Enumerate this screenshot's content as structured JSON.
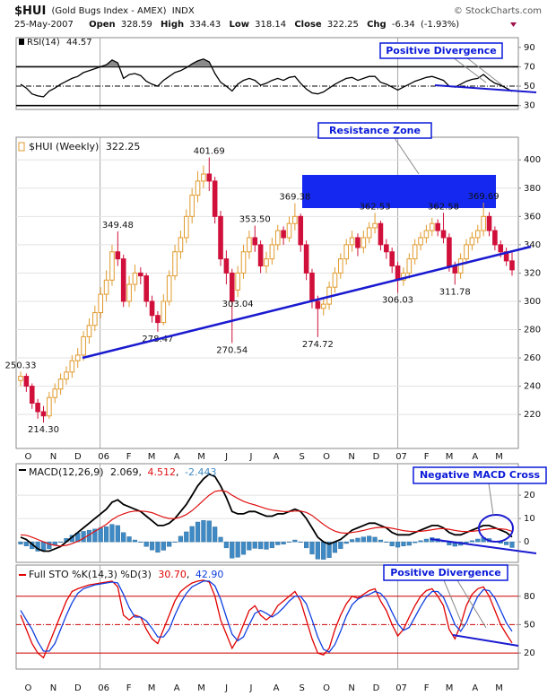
{
  "header": {
    "symbol": "$HUI",
    "name": "(Gold Bugs Index - AMEX)",
    "exchange": "INDX",
    "source": "© StockCharts.com",
    "date": "25-May-2007",
    "open_label": "Open",
    "high_label": "High",
    "low_label": "Low",
    "close_label": "Close",
    "chg_label": "Chg",
    "change": -6.34,
    "change_pct": "(-1.93%)"
  },
  "chart_data": [
    {
      "type": "line",
      "ylim": [
        26,
        100
      ],
      "yticks": [
        30,
        50,
        70,
        90
      ],
      "grid": false,
      "ref_lines": [
        30,
        70
      ],
      "ref_color": "#000000",
      "mid_line": 50,
      "fill_above": 70,
      "fill_color": "#8c8c8c",
      "series": [
        {
          "name": "RSI(14)",
          "color": "#000000",
          "values": [
            52,
            48,
            42,
            40,
            39,
            45,
            48,
            52,
            55,
            58,
            60,
            64,
            66,
            68,
            70,
            72,
            77,
            74,
            58,
            62,
            63,
            61,
            55,
            52,
            50,
            56,
            60,
            64,
            66,
            69,
            73,
            76,
            78,
            75,
            63,
            54,
            50,
            45,
            52,
            56,
            58,
            56,
            51,
            53,
            56,
            58,
            56,
            59,
            60,
            53,
            47,
            43,
            42,
            44,
            48,
            52,
            55,
            58,
            59,
            56,
            58,
            60,
            60,
            54,
            52,
            49,
            46,
            49,
            52,
            55,
            57,
            59,
            60,
            58,
            56,
            50,
            49,
            52,
            55,
            57,
            58,
            62,
            57,
            53,
            51,
            48,
            44.57
          ]
        }
      ],
      "annotations": [
        "Positive Divergence"
      ]
    },
    {
      "type": "candlestick",
      "label": "$HUI (Weekly)",
      "ylim": [
        196,
        416
      ],
      "yticks": [
        220,
        240,
        260,
        280,
        300,
        320,
        340,
        360,
        380,
        400
      ],
      "grid": true,
      "up_color": "#e09a2c",
      "down_color": "#d0103a",
      "open": [
        244,
        247,
        240,
        228,
        222,
        219,
        232,
        238,
        245,
        250,
        258,
        262,
        275,
        283,
        292,
        305,
        315,
        335,
        330,
        300,
        312,
        320,
        318,
        300,
        290,
        285,
        300,
        318,
        335,
        345,
        360,
        375,
        385,
        390,
        385,
        360,
        330,
        320,
        308,
        320,
        335,
        345,
        340,
        325,
        330,
        340,
        350,
        345,
        355,
        360,
        340,
        320,
        300,
        295,
        298,
        310,
        320,
        330,
        340,
        345,
        338,
        345,
        352,
        355,
        340,
        335,
        325,
        315,
        320,
        330,
        340,
        345,
        350,
        355,
        350,
        345,
        325,
        320,
        330,
        340,
        345,
        350,
        360,
        350,
        340,
        335,
        328.59
      ],
      "high": [
        250.33,
        249,
        242,
        231,
        226,
        236,
        242,
        249,
        254,
        262,
        267,
        279,
        288,
        297,
        310,
        322,
        340,
        349.48,
        333,
        318,
        326,
        324,
        320,
        304,
        293,
        305,
        322,
        340,
        350,
        365,
        380,
        392,
        396,
        401.69,
        388,
        364,
        336,
        323,
        325,
        340,
        350,
        353.5,
        343,
        335,
        345,
        354,
        353,
        360,
        369.38,
        362,
        343,
        323,
        304,
        302,
        314,
        324,
        334,
        344,
        350,
        348,
        350,
        356,
        362.53,
        357,
        344,
        338,
        328,
        324,
        334,
        344,
        349,
        354,
        359,
        358,
        362.58,
        348,
        328,
        334,
        344,
        349,
        354,
        369.69,
        363,
        353,
        343,
        338,
        334.43
      ],
      "low": [
        240,
        236,
        224,
        217,
        214.3,
        217,
        228,
        234,
        241,
        246,
        253,
        258,
        270,
        279,
        288,
        300,
        311,
        325,
        296,
        296,
        307,
        312,
        296,
        285,
        278.47,
        283,
        297,
        315,
        330,
        341,
        355,
        370,
        380,
        378,
        355,
        325,
        312,
        270.54,
        303.04,
        316,
        330,
        335,
        320,
        320,
        326,
        336,
        340,
        342,
        350,
        335,
        315,
        295,
        274.72,
        290,
        294,
        306,
        316,
        326,
        335,
        332,
        334,
        341,
        348,
        336,
        330,
        320,
        306.03,
        311,
        316,
        326,
        336,
        341,
        346,
        346,
        341,
        321,
        311.78,
        316,
        326,
        336,
        341,
        346,
        346,
        336,
        331,
        325,
        318.14
      ],
      "close": [
        247,
        240,
        228,
        222,
        219,
        232,
        238,
        245,
        250,
        258,
        262,
        275,
        283,
        292,
        305,
        315,
        335,
        330,
        300,
        312,
        320,
        318,
        300,
        290,
        285,
        300,
        318,
        335,
        345,
        360,
        375,
        385,
        390,
        385,
        360,
        330,
        320,
        300,
        320,
        335,
        345,
        340,
        325,
        330,
        340,
        350,
        345,
        355,
        360,
        340,
        320,
        300,
        295,
        298,
        310,
        320,
        330,
        340,
        345,
        338,
        345,
        352,
        355,
        340,
        335,
        325,
        315,
        320,
        330,
        340,
        345,
        350,
        355,
        350,
        345,
        325,
        320,
        330,
        340,
        345,
        350,
        360,
        350,
        340,
        335,
        328.59,
        322.25
      ],
      "high_labels": [
        "250.33",
        null,
        null,
        null,
        null,
        null,
        null,
        null,
        null,
        null,
        null,
        null,
        null,
        null,
        null,
        null,
        null,
        "349.48",
        null,
        null,
        null,
        null,
        null,
        null,
        null,
        null,
        null,
        null,
        null,
        null,
        null,
        null,
        null,
        "401.69",
        null,
        null,
        null,
        null,
        null,
        null,
        null,
        "353.50",
        null,
        null,
        null,
        null,
        null,
        null,
        "369.38",
        null,
        null,
        null,
        null,
        null,
        null,
        null,
        null,
        null,
        null,
        null,
        null,
        null,
        "362.53",
        null,
        null,
        null,
        null,
        null,
        null,
        null,
        null,
        null,
        null,
        null,
        "362.58",
        null,
        null,
        null,
        null,
        null,
        null,
        "369.69",
        null,
        null,
        null,
        null,
        null
      ],
      "low_labels": [
        null,
        null,
        null,
        null,
        "214.30",
        null,
        null,
        null,
        null,
        null,
        null,
        null,
        null,
        null,
        null,
        null,
        null,
        null,
        null,
        null,
        null,
        null,
        null,
        null,
        "278.47",
        null,
        null,
        null,
        null,
        null,
        null,
        null,
        null,
        null,
        null,
        null,
        null,
        "270.54",
        "303.04",
        null,
        null,
        null,
        null,
        null,
        null,
        null,
        null,
        null,
        null,
        null,
        null,
        null,
        "274.72",
        null,
        null,
        null,
        null,
        null,
        null,
        null,
        null,
        null,
        null,
        null,
        null,
        null,
        "306.03",
        null,
        null,
        null,
        null,
        null,
        null,
        null,
        null,
        null,
        "311.78",
        null,
        null,
        null,
        null,
        null,
        null,
        null,
        null,
        null,
        null
      ],
      "xticks": [
        {
          "value": 0.7,
          "label": "O"
        },
        {
          "value": 5.1,
          "label": "N"
        },
        {
          "value": 9.4,
          "label": "D"
        },
        {
          "value": 13.9,
          "label": "06"
        },
        {
          "value": 18.3,
          "label": "F"
        },
        {
          "value": 22.3,
          "label": "M"
        },
        {
          "value": 26.7,
          "label": "A"
        },
        {
          "value": 31,
          "label": "M"
        },
        {
          "value": 35.4,
          "label": "J"
        },
        {
          "value": 39.7,
          "label": "J"
        },
        {
          "value": 44.1,
          "label": "A"
        },
        {
          "value": 48.6,
          "label": "S"
        },
        {
          "value": 52.9,
          "label": "O"
        },
        {
          "value": 57.3,
          "label": "N"
        },
        {
          "value": 61.6,
          "label": "D"
        },
        {
          "value": 66,
          "label": "07"
        },
        {
          "value": 70.4,
          "label": "F"
        },
        {
          "value": 74.4,
          "label": "M"
        },
        {
          "value": 78.9,
          "label": "A"
        },
        {
          "value": 83.1,
          "label": "M"
        }
      ],
      "annotations": [
        "Resistance Zone"
      ]
    },
    {
      "type": "macd",
      "ylim": [
        -8.8,
        33.5
      ],
      "yticks": [
        0,
        10,
        20
      ],
      "grid": true,
      "series": [
        {
          "name": "MACD(12,26,9)",
          "color": "#000000",
          "values": [
            2,
            1,
            -1,
            -3,
            -4,
            -4,
            -3,
            -2,
            0,
            2,
            4,
            6,
            8,
            10,
            12,
            14,
            17,
            18,
            16,
            15,
            14,
            13,
            11,
            9,
            7,
            7,
            8,
            10,
            13,
            16,
            20,
            24,
            27,
            29,
            28,
            24,
            19,
            13,
            12,
            12,
            13,
            13,
            12,
            11,
            11,
            12,
            12,
            13,
            14,
            13,
            10,
            6,
            2,
            0,
            -1,
            0,
            1,
            3,
            5,
            6,
            7,
            8,
            8,
            7,
            6,
            4,
            3,
            3,
            3,
            4,
            5,
            6,
            7,
            7,
            6,
            4,
            3,
            3,
            4,
            5,
            6,
            7,
            7,
            6,
            5,
            4,
            2.069
          ]
        },
        {
          "color": "#e01010",
          "values": [
            3,
            2.8,
            2,
            1,
            0,
            -1,
            -1.5,
            -1.8,
            -1.5,
            -0.8,
            0.2,
            1.5,
            3,
            4.5,
            6,
            7.5,
            9.5,
            11,
            12,
            12.8,
            13.2,
            13.2,
            13,
            12.5,
            11.5,
            10.6,
            10,
            10,
            10.6,
            11.7,
            13.4,
            15.5,
            17.8,
            20,
            21.6,
            22,
            21.6,
            20,
            18.6,
            17.4,
            16.5,
            15.8,
            15,
            14.2,
            13.6,
            13.3,
            13,
            13,
            13.2,
            13.2,
            12.6,
            11.3,
            9.4,
            7.5,
            5.8,
            4.6,
            3.9,
            3.7,
            4,
            4.4,
            4.9,
            5.5,
            6,
            6.2,
            6.2,
            5.8,
            5.3,
            4.8,
            4.5,
            4.4,
            4.5,
            4.8,
            5.2,
            5.6,
            5.7,
            5.4,
            4.9,
            4.5,
            4.4,
            4.5,
            4.8,
            5.2,
            5.6,
            5.7,
            5.6,
            5.3,
            4.512
          ]
        },
        {
          "color": "#3f8ac4",
          "style": "bar",
          "values": [
            -1,
            -1.8,
            -3,
            -4,
            -4,
            -3,
            -1.5,
            -0.2,
            1.5,
            2.8,
            3.8,
            4.5,
            5,
            5.5,
            6,
            6.5,
            7.5,
            7,
            4,
            2.2,
            0.8,
            -0.2,
            -2,
            -3.5,
            -4.5,
            -3.6,
            -2,
            0,
            2.4,
            4.3,
            6.6,
            8.5,
            9.2,
            9,
            6.4,
            2,
            -2.6,
            -7,
            -6.6,
            -5.4,
            -3.5,
            -2.8,
            -3,
            -3.2,
            -2.6,
            -1.3,
            -1,
            0,
            0.8,
            -0.2,
            -2.6,
            -5.3,
            -7.4,
            -7.5,
            -6.8,
            -4.6,
            -2.9,
            -0.7,
            1,
            1.6,
            2.1,
            2.5,
            2,
            0.8,
            -0.2,
            -1.8,
            -2.3,
            -1.8,
            -1.5,
            -0.4,
            0.5,
            1.2,
            1.8,
            1.4,
            0.3,
            -1.4,
            -1.9,
            -1.5,
            -0.4,
            0.5,
            1.2,
            1.8,
            1.4,
            0.3,
            -0.6,
            -1.3,
            -2.443
          ]
        }
      ],
      "annotations": [
        "Negative MACD Cross"
      ]
    },
    {
      "type": "line",
      "label": "Full STO %K(14,3) %D(3)",
      "ylim": [
        3,
        113
      ],
      "yticks": [
        20,
        50,
        80
      ],
      "grid": false,
      "ref_lines": [
        20,
        80
      ],
      "ref_color": "#cc0000",
      "mid_line": 50,
      "series": [
        {
          "color": "#e00000",
          "last_label": "30.70",
          "values": [
            60,
            45,
            30,
            20,
            15,
            30,
            45,
            60,
            75,
            85,
            88,
            90,
            92,
            93,
            94,
            95,
            96,
            90,
            60,
            55,
            60,
            58,
            45,
            35,
            30,
            45,
            60,
            75,
            85,
            90,
            94,
            96,
            97,
            95,
            80,
            55,
            40,
            25,
            35,
            50,
            65,
            70,
            60,
            55,
            60,
            70,
            75,
            80,
            85,
            75,
            55,
            35,
            20,
            18,
            25,
            45,
            60,
            72,
            80,
            78,
            82,
            86,
            88,
            75,
            65,
            50,
            38,
            45,
            58,
            70,
            80,
            86,
            88,
            80,
            70,
            45,
            35,
            50,
            70,
            82,
            88,
            90,
            80,
            65,
            50,
            40,
            30.7
          ]
        },
        {
          "color": "#1040e0",
          "last_label": "42.90",
          "values": [
            65,
            55,
            45,
            32,
            22,
            22,
            30,
            45,
            60,
            73,
            83,
            88,
            90,
            92,
            93,
            94,
            95,
            94,
            82,
            68,
            58,
            58,
            54,
            46,
            37,
            37,
            45,
            60,
            73,
            83,
            90,
            93,
            96,
            96,
            91,
            77,
            58,
            40,
            33,
            37,
            50,
            62,
            65,
            62,
            58,
            62,
            68,
            75,
            80,
            80,
            72,
            55,
            37,
            24,
            21,
            29,
            43,
            59,
            71,
            77,
            80,
            82,
            85,
            83,
            76,
            63,
            51,
            44,
            47,
            58,
            69,
            79,
            85,
            85,
            79,
            65,
            50,
            43,
            52,
            67,
            80,
            87,
            86,
            78,
            65,
            52,
            42.9
          ]
        }
      ],
      "annotations": [
        "Positive Divergence"
      ]
    }
  ]
}
